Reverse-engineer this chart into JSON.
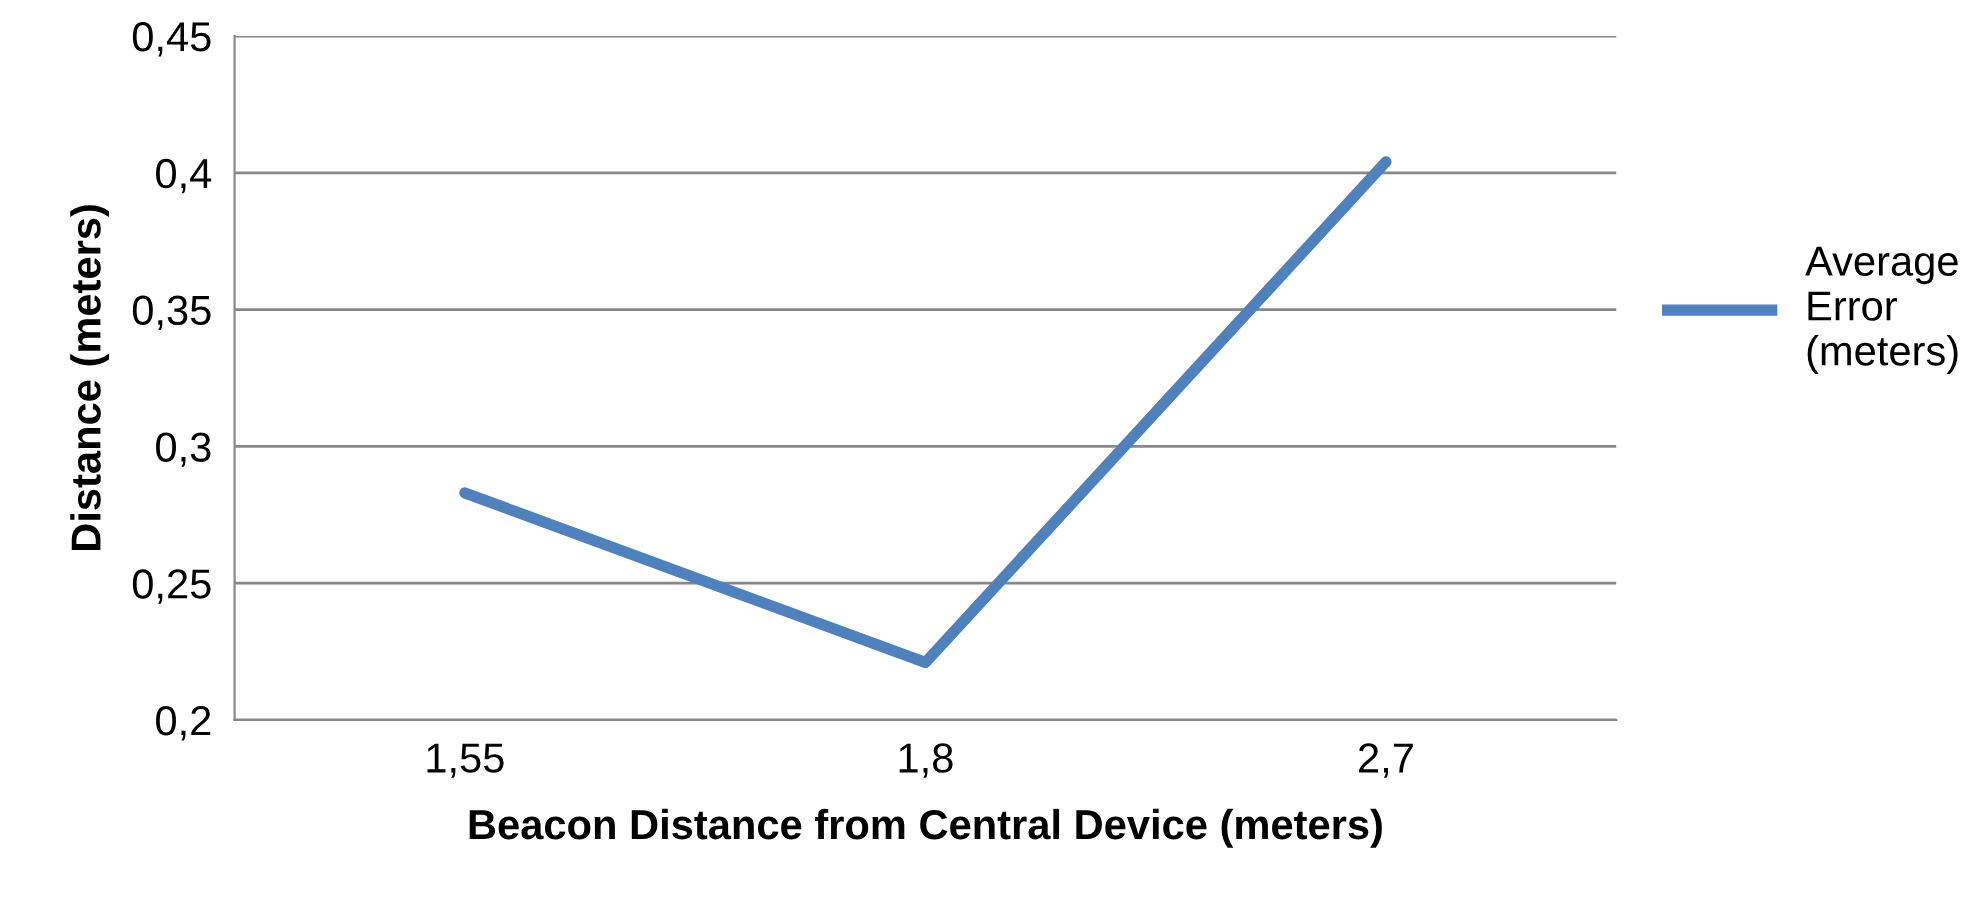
{
  "chart_data": {
    "type": "line",
    "xlabel": "Beacon Distance from Central Device (meters)",
    "ylabel": "Distance (meters)",
    "categories": [
      "1,55",
      "1,8",
      "2,7"
    ],
    "series": [
      {
        "name": "Average Error (meters)",
        "color": "#4f81bd",
        "values": [
          0.283,
          0.221,
          0.404
        ]
      }
    ],
    "ylim": [
      0.2,
      0.45
    ],
    "yticks": [
      {
        "value": 0.2,
        "label": "0,2"
      },
      {
        "value": 0.25,
        "label": "0,25"
      },
      {
        "value": 0.3,
        "label": "0,3"
      },
      {
        "value": 0.35,
        "label": "0,35"
      },
      {
        "value": 0.4,
        "label": "0,4"
      },
      {
        "value": 0.45,
        "label": "0,45"
      }
    ],
    "grid": "y",
    "legend": "right",
    "marker": "none",
    "line_style": "solid"
  }
}
